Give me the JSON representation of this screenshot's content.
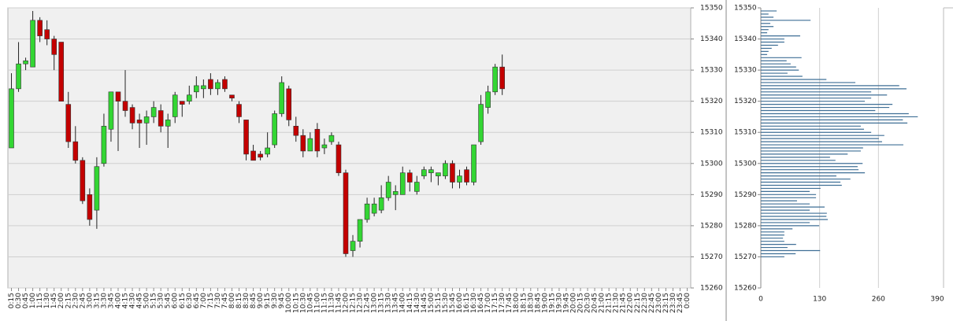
{
  "chart_data": [
    {
      "type": "candlestick",
      "categories": [
        "0:15",
        "0:30",
        "0:45",
        "1:00",
        "1:15",
        "1:30",
        "1:45",
        "2:00",
        "2:15",
        "2:30",
        "2:45",
        "3:00",
        "3:15",
        "3:30",
        "3:45",
        "4:00",
        "4:15",
        "4:30",
        "4:45",
        "5:00",
        "5:15",
        "5:30",
        "5:45",
        "6:00",
        "6:15",
        "6:30",
        "6:45",
        "7:00",
        "7:15",
        "7:30",
        "7:45",
        "8:00",
        "8:15",
        "8:30",
        "8:45",
        "9:00",
        "9:15",
        "9:30",
        "9:45",
        "10:00",
        "10:15",
        "10:30",
        "10:45",
        "11:00",
        "11:15",
        "11:30",
        "11:45",
        "12:00",
        "12:15",
        "12:30",
        "12:45",
        "13:00",
        "13:15",
        "13:30",
        "13:45",
        "14:00",
        "14:15",
        "14:30",
        "14:45",
        "15:00",
        "15:15",
        "15:30",
        "15:45",
        "16:00",
        "16:15",
        "16:30",
        "16:45",
        "17:00",
        "17:15",
        "17:30",
        "17:45",
        "18:00",
        "18:15",
        "18:30",
        "18:45",
        "19:00",
        "19:15",
        "19:30",
        "19:45",
        "20:00",
        "20:15",
        "20:30",
        "20:45",
        "21:00",
        "21:15",
        "21:30",
        "21:45",
        "22:00",
        "22:15",
        "22:30",
        "22:45",
        "23:00",
        "23:15",
        "23:30",
        "23:45",
        "0:00"
      ],
      "open": [
        15305,
        15324,
        15332,
        15331,
        15346,
        15343,
        15340,
        15339,
        15319,
        15307,
        15301,
        15290,
        15285,
        15300,
        15311,
        15323,
        15320,
        15318,
        15314,
        15313,
        15315,
        15317,
        15312,
        15315,
        15320,
        15320,
        15323,
        15324,
        15327,
        15324,
        15327,
        15322,
        15319,
        15314,
        15304,
        15303,
        15303,
        15306,
        15316,
        15324,
        15312,
        15309,
        15304,
        15311,
        15305,
        15307,
        15306,
        15297,
        15272,
        15275,
        15282,
        15284,
        15285,
        15289,
        15290,
        15290,
        15297,
        15291,
        15296,
        15297,
        15296,
        15296,
        15300,
        15294,
        15298,
        15294,
        15307,
        15318,
        15323,
        15331,
        null,
        null,
        null,
        null,
        null,
        null,
        null,
        null,
        null,
        null,
        null,
        null,
        null,
        null,
        null,
        null,
        null,
        null,
        null,
        null,
        null,
        null,
        null,
        null,
        null,
        null
      ],
      "high": [
        15329,
        15339,
        15334,
        15349,
        15347,
        15346,
        15341,
        15339,
        15323,
        15312,
        15302,
        15292,
        15302,
        15316,
        15323,
        15323,
        15330,
        15319,
        15316,
        15317,
        15320,
        15319,
        15316,
        15323,
        15320,
        15325,
        15328,
        15327,
        15329,
        15327,
        15328,
        15322,
        15320,
        15314,
        15306,
        15304,
        15310,
        15317,
        15328,
        15325,
        15315,
        15311,
        15310,
        15313,
        15308,
        15310,
        15307,
        15298,
        15277,
        15282,
        15289,
        15289,
        15293,
        15296,
        15293,
        15299,
        15298,
        15296,
        15299,
        15299,
        15297,
        15301,
        15301,
        15298,
        15299,
        15306,
        15322,
        15325,
        15332,
        15335,
        null,
        null,
        null,
        null,
        null,
        null,
        null,
        null,
        null,
        null,
        null,
        null,
        null,
        null,
        null,
        null,
        null,
        null,
        null,
        null,
        null,
        null,
        null,
        null,
        null,
        null
      ],
      "low": [
        15305,
        15323,
        15330,
        15331,
        15339,
        15338,
        15330,
        15320,
        15305,
        15300,
        15287,
        15280,
        15279,
        15299,
        15307,
        15304,
        15315,
        15311,
        15305,
        15306,
        15313,
        15310,
        15305,
        15313,
        15315,
        15319,
        15321,
        15321,
        15322,
        15322,
        15323,
        15320,
        15313,
        15301,
        15301,
        15301,
        15302,
        15305,
        15315,
        15312,
        15307,
        15302,
        15304,
        15302,
        15303,
        15306,
        15296,
        15270,
        15270,
        15273,
        15281,
        15283,
        15284,
        15288,
        15285,
        15290,
        15291,
        15290,
        15295,
        15294,
        15293,
        15295,
        15292,
        15292,
        15293,
        15293,
        15306,
        15316,
        15322,
        15322,
        null,
        null,
        null,
        null,
        null,
        null,
        null,
        null,
        null,
        null,
        null,
        null,
        null,
        null,
        null,
        null,
        null,
        null,
        null,
        null,
        null,
        null,
        null,
        null,
        null,
        null
      ],
      "close": [
        15324,
        15332,
        15333,
        15346,
        15341,
        15340,
        15335,
        15320,
        15307,
        15301,
        15288,
        15282,
        15299,
        15312,
        15323,
        15320,
        15317,
        15313,
        15313,
        15315,
        15318,
        15312,
        15314,
        15322,
        15319,
        15322,
        15325,
        15325,
        15324,
        15326,
        15324,
        15321,
        15315,
        15303,
        15301,
        15302,
        15305,
        15316,
        15326,
        15314,
        15309,
        15304,
        15308,
        15304,
        15306,
        15309,
        15297,
        15271,
        15275,
        15282,
        15287,
        15287,
        15289,
        15294,
        15291,
        15297,
        15294,
        15294,
        15298,
        15298,
        15297,
        15300,
        15294,
        15296,
        15294,
        15306,
        15319,
        15323,
        15331,
        15324,
        null,
        null,
        null,
        null,
        null,
        null,
        null,
        null,
        null,
        null,
        null,
        null,
        null,
        null,
        null,
        null,
        null,
        null,
        null,
        null,
        null,
        null,
        null,
        null,
        null,
        null
      ],
      "ylim": [
        15260,
        15350
      ],
      "yticks": [
        15260,
        15270,
        15280,
        15290,
        15300,
        15310,
        15320,
        15330,
        15340,
        15350
      ],
      "grid": true,
      "up_color": "#33d633",
      "down_color": "#c40000"
    },
    {
      "type": "hbar",
      "y": [
        15349,
        15348,
        15347,
        15346,
        15345,
        15344,
        15343,
        15342,
        15341,
        15340,
        15339,
        15338,
        15337,
        15336,
        15335,
        15334,
        15333,
        15332,
        15331,
        15330,
        15329,
        15328,
        15327,
        15326,
        15325,
        15324,
        15323,
        15322,
        15321,
        15320,
        15319,
        15318,
        15317,
        15316,
        15315,
        15314,
        15313,
        15312,
        15311,
        15310,
        15309,
        15308,
        15307,
        15306,
        15305,
        15304,
        15303,
        15302,
        15301,
        15300,
        15299,
        15298,
        15297,
        15296,
        15295,
        15294,
        15293,
        15292,
        15291,
        15290,
        15289,
        15288,
        15287,
        15286,
        15285,
        15284,
        15283,
        15282,
        15281,
        15280,
        15279,
        15278,
        15277,
        15276,
        15275,
        15274,
        15273,
        15272,
        15271,
        15270
      ],
      "values": [
        35,
        17,
        28,
        110,
        21,
        28,
        17,
        14,
        87,
        52,
        52,
        38,
        24,
        17,
        14,
        90,
        57,
        66,
        78,
        84,
        59,
        92,
        145,
        209,
        306,
        322,
        244,
        279,
        244,
        230,
        291,
        284,
        253,
        327,
        347,
        314,
        324,
        221,
        228,
        244,
        273,
        261,
        268,
        315,
        226,
        221,
        192,
        153,
        165,
        225,
        214,
        216,
        230,
        167,
        198,
        176,
        179,
        132,
        108,
        122,
        122,
        80,
        108,
        141,
        108,
        146,
        145,
        148,
        108,
        129,
        70,
        52,
        52,
        49,
        52,
        78,
        59,
        131,
        77,
        52
      ],
      "ylim": [
        15260,
        15350
      ],
      "yticks": [
        15260,
        15270,
        15280,
        15290,
        15300,
        15310,
        15320,
        15330,
        15340,
        15350
      ],
      "xlim": [
        0,
        390
      ],
      "xticks": [
        0,
        130,
        260,
        390
      ],
      "grid": true,
      "color": "#3f6f96"
    }
  ]
}
